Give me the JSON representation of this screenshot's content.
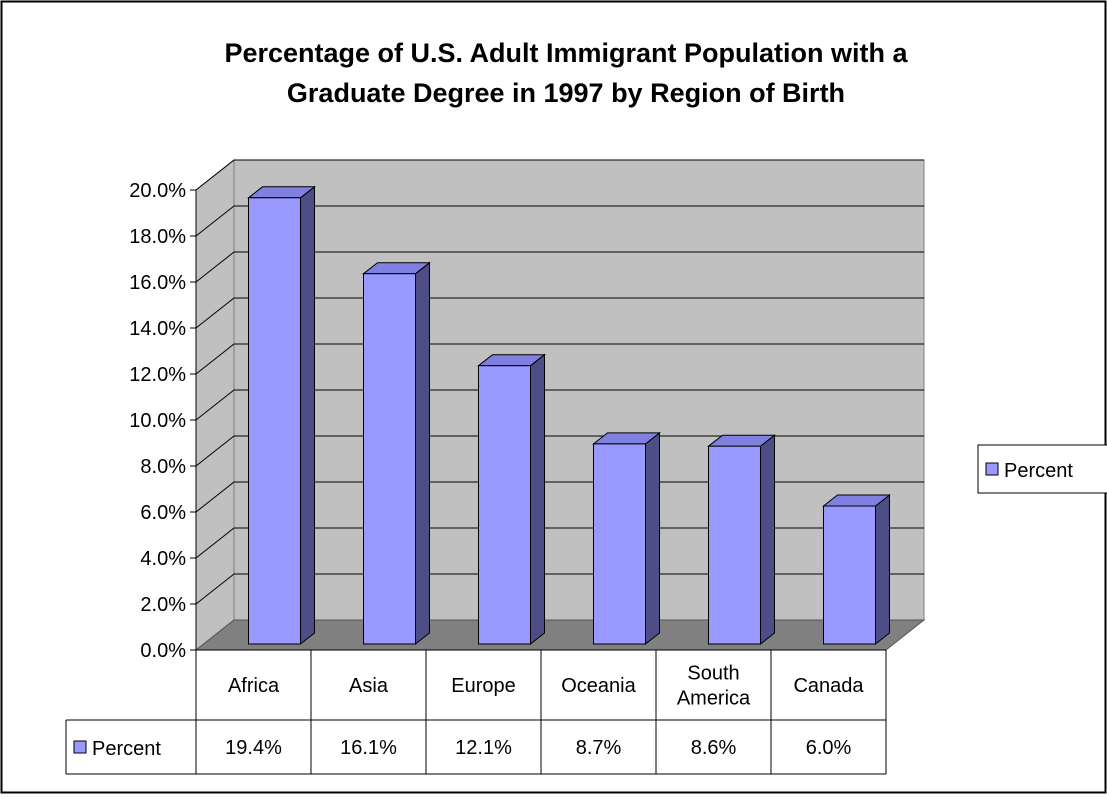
{
  "chart_data": {
    "type": "bar",
    "title_lines": [
      "Percentage of U.S. Adult Immigrant Population with a",
      "Graduate Degree in 1997 by Region of Birth"
    ],
    "categories": [
      [
        "Africa"
      ],
      [
        "Asia"
      ],
      [
        "Europe"
      ],
      [
        "Oceania"
      ],
      [
        "South",
        "America"
      ],
      [
        "Canada"
      ]
    ],
    "series": [
      {
        "name": "Percent",
        "values": [
          19.4,
          16.1,
          12.1,
          8.7,
          8.6,
          6.0
        ],
        "value_labels": [
          "19.4%",
          "16.1%",
          "12.1%",
          "8.7%",
          "8.6%",
          "6.0%"
        ]
      }
    ],
    "ylim": [
      0,
      20
    ],
    "y_step": 2,
    "y_tick_labels": [
      "0.0%",
      "2.0%",
      "4.0%",
      "6.0%",
      "8.0%",
      "10.0%",
      "12.0%",
      "14.0%",
      "16.0%",
      "18.0%",
      "20.0%"
    ],
    "grid": true,
    "legend_position": "right",
    "data_table": true,
    "style": "3d",
    "colors": {
      "bar_front": "#9999ff",
      "bar_side": "#4e4e86",
      "bar_top": "#8080e0",
      "plot_wall": "#c0c0c0",
      "floor": "#808080",
      "gridline": "#000000"
    }
  }
}
